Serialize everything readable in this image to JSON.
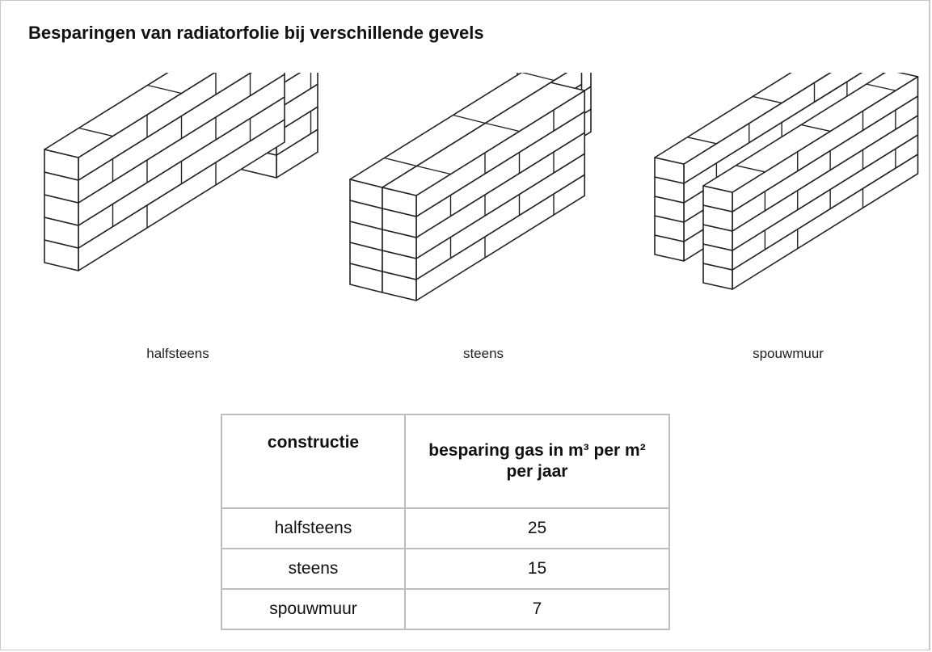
{
  "title": "Besparingen van radiatorfolie bij verschillende gevels",
  "captions": [
    "halfsteens",
    "steens",
    "spouwmuur"
  ],
  "table": {
    "header": [
      "constructie",
      "besparing gas in m³ per m² per jaar"
    ],
    "rows": [
      [
        "halfsteens",
        "25"
      ],
      [
        "steens",
        "15"
      ],
      [
        "spouwmuur",
        "7"
      ]
    ]
  }
}
